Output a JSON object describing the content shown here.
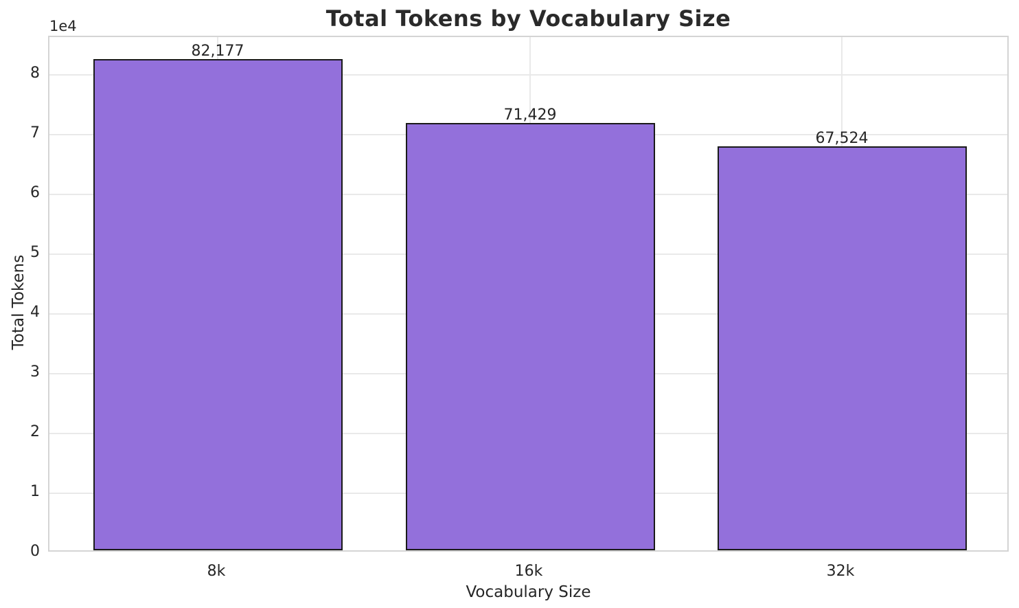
{
  "chart_data": {
    "type": "bar",
    "title": "Total Tokens by Vocabulary Size",
    "xlabel": "Vocabulary Size",
    "ylabel": "Total Tokens",
    "categories": [
      "8k",
      "16k",
      "32k"
    ],
    "values": [
      82177,
      71429,
      67524
    ],
    "value_labels": [
      "82,177",
      "71,429",
      "67,524"
    ],
    "y_axis": {
      "multiplier_label": "1e4",
      "tick_values": [
        0,
        1,
        2,
        3,
        4,
        5,
        6,
        7,
        8
      ],
      "tick_unit": 10000,
      "ylim": [
        0,
        86300
      ]
    },
    "grid": true,
    "legend": false,
    "colors": {
      "bar_fill": "#9370DB",
      "bar_edge": "#1a1a1a",
      "grid_line": "#e9e9e9",
      "spine": "#d4d4d4",
      "text": "#262626",
      "title_text": "#2a2a2a",
      "background": "#ffffff"
    }
  }
}
